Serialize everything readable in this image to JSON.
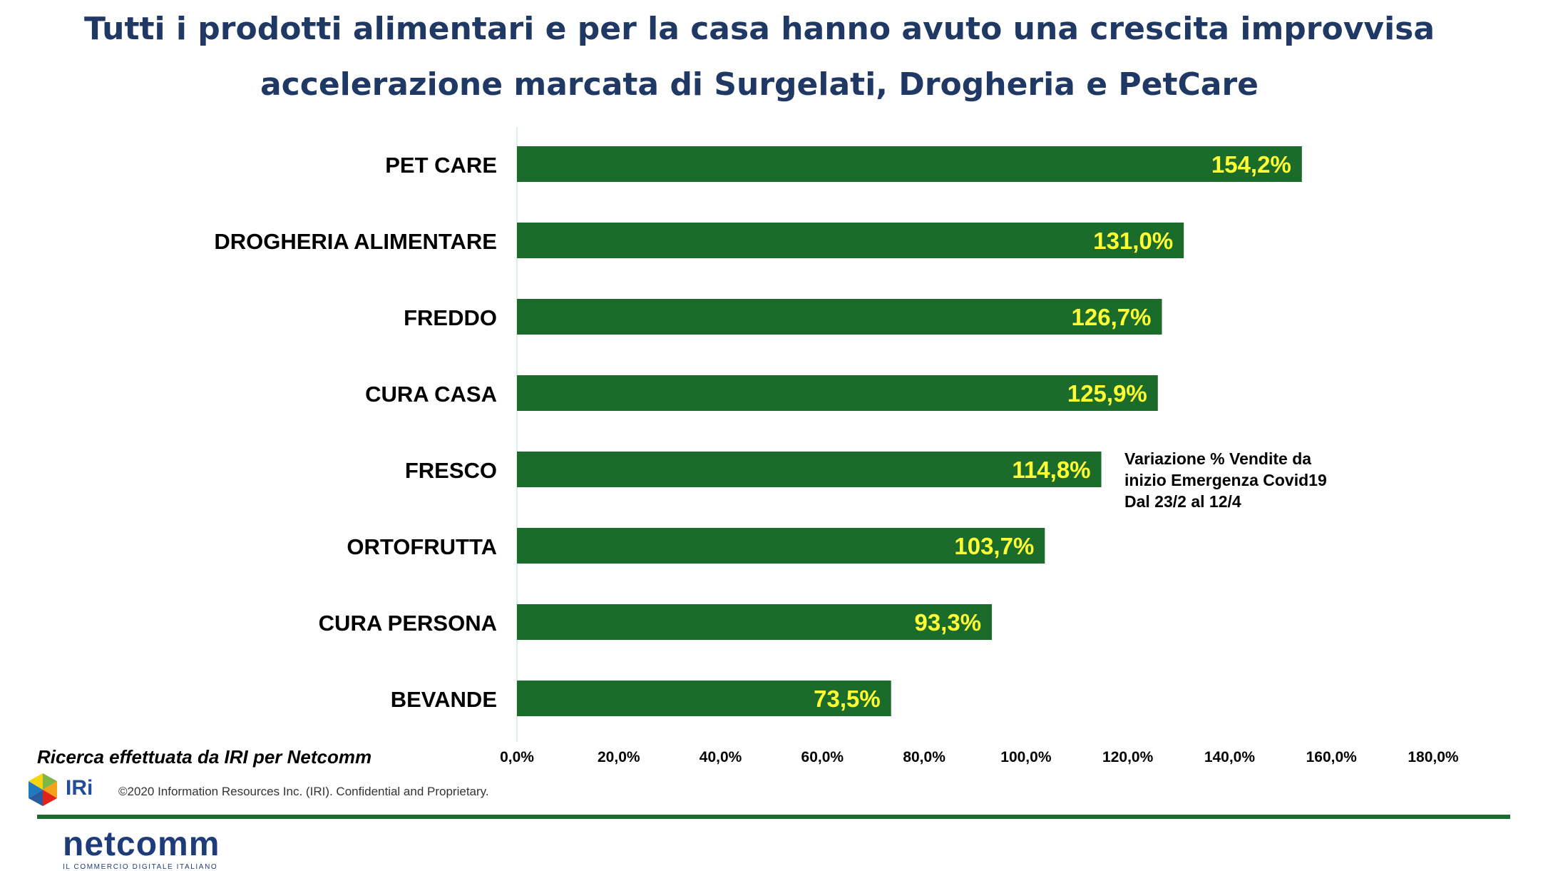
{
  "title": {
    "line1": "Tutti i prodotti alimentari e per la casa hanno avuto una crescita improvvisa",
    "line2": "accelerazione marcata di Surgelati, Drogheria e PetCare"
  },
  "note": {
    "line1": "Variazione % Vendite da",
    "line2": "inizio Emergenza Covid19",
    "line3": "Dal 23/2 al 12/4"
  },
  "footer": {
    "research": "Ricerca effettuata da IRI per Netcomm",
    "iri_brand": "IRi",
    "copyright": "©2020 Information Resources Inc. (IRI). Confidential and Proprietary.",
    "netcomm_brand": "netcomm",
    "netcomm_tagline": "IL COMMERCIO DIGITALE ITALIANO"
  },
  "colors": {
    "bar": "#1b6b2b",
    "value_label": "#ffff33",
    "title": "#1f3864",
    "axis_line": "#d9f0dc"
  },
  "chart_data": {
    "type": "bar",
    "orientation": "horizontal",
    "categories": [
      "PET CARE",
      "DROGHERIA ALIMENTARE",
      "FREDDO",
      "CURA CASA",
      "FRESCO",
      "ORTOFRUTTA",
      "CURA PERSONA",
      "BEVANDE"
    ],
    "values": [
      154.2,
      131.0,
      126.7,
      125.9,
      114.8,
      103.7,
      93.3,
      73.5
    ],
    "value_labels": [
      "154,2%",
      "131,0%",
      "126,7%",
      "125,9%",
      "114,8%",
      "103,7%",
      "93,3%",
      "73,5%"
    ],
    "xlim": [
      0,
      180
    ],
    "x_ticks": [
      0,
      20,
      40,
      60,
      80,
      100,
      120,
      140,
      160,
      180
    ],
    "x_tick_labels": [
      "0,0%",
      "20,0%",
      "40,0%",
      "60,0%",
      "80,0%",
      "100,0%",
      "120,0%",
      "140,0%",
      "160,0%",
      "180,0%"
    ],
    "grid": false
  }
}
